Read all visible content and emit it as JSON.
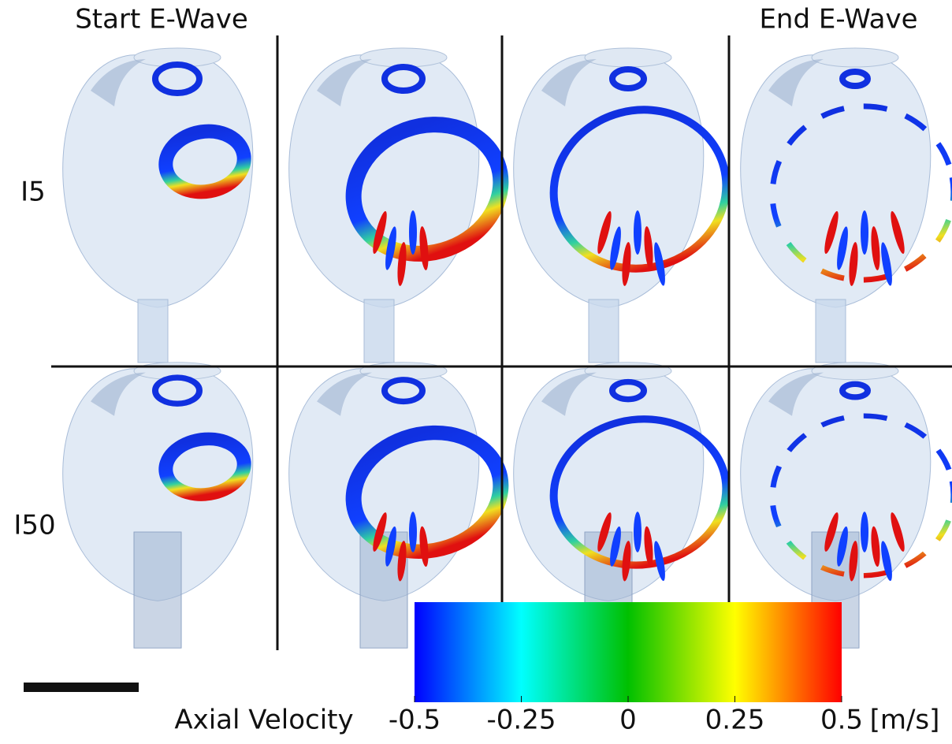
{
  "header": {
    "start": "Start E-Wave",
    "end": "End E-Wave"
  },
  "rows": [
    "I5",
    "I50"
  ],
  "colorbar": {
    "label": "Axial Velocity",
    "unit": "[m/s]",
    "lim": [
      -0.5,
      0.5
    ],
    "ticks": [
      -0.5,
      -0.25,
      0,
      0.25,
      0.5
    ]
  }
}
